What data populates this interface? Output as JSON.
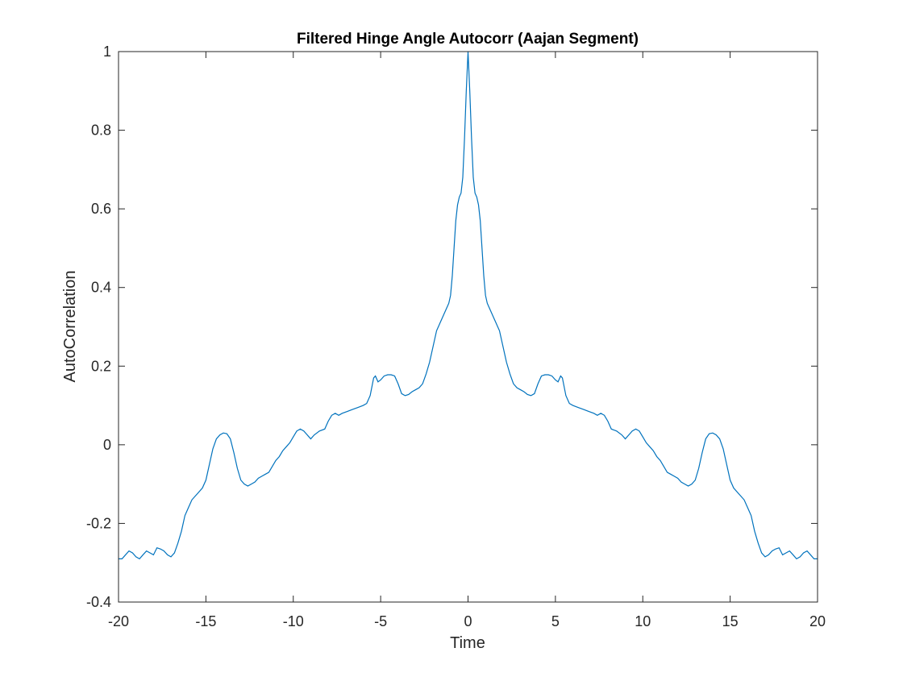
{
  "chart_data": {
    "type": "line",
    "title": "Filtered Hinge Angle Autocorr (Aajan Segment)",
    "xlabel": "Time",
    "ylabel": "AutoCorrelation",
    "xlim": [
      -20,
      20
    ],
    "ylim": [
      -0.4,
      1
    ],
    "xticks": [
      -20,
      -15,
      -10,
      -5,
      0,
      5,
      10,
      15,
      20
    ],
    "yticks": [
      -0.4,
      -0.2,
      0,
      0.2,
      0.4,
      0.6,
      0.8,
      1
    ],
    "xtick_labels": [
      "-20",
      "-15",
      "-10",
      "-5",
      "0",
      "5",
      "10",
      "15",
      "20"
    ],
    "ytick_labels": [
      "-0.4",
      "-0.2",
      "0",
      "0.2",
      "0.4",
      "0.6",
      "0.8",
      "1"
    ],
    "grid": false,
    "box": true,
    "series_color": "#0072BD",
    "series": [
      {
        "symmetric": true,
        "points_right_half": [
          [
            0,
            1.0
          ],
          [
            0.1,
            0.9
          ],
          [
            0.2,
            0.78
          ],
          [
            0.3,
            0.68
          ],
          [
            0.4,
            0.64
          ],
          [
            0.5,
            0.63
          ],
          [
            0.6,
            0.61
          ],
          [
            0.7,
            0.57
          ],
          [
            0.8,
            0.5
          ],
          [
            0.9,
            0.43
          ],
          [
            1.0,
            0.38
          ],
          [
            1.1,
            0.36
          ],
          [
            1.2,
            0.35
          ],
          [
            1.3,
            0.34
          ],
          [
            1.4,
            0.33
          ],
          [
            1.5,
            0.32
          ],
          [
            1.6,
            0.31
          ],
          [
            1.8,
            0.29
          ],
          [
            2.0,
            0.25
          ],
          [
            2.2,
            0.21
          ],
          [
            2.4,
            0.18
          ],
          [
            2.6,
            0.155
          ],
          [
            2.8,
            0.145
          ],
          [
            3.0,
            0.14
          ],
          [
            3.2,
            0.135
          ],
          [
            3.4,
            0.128
          ],
          [
            3.6,
            0.125
          ],
          [
            3.8,
            0.13
          ],
          [
            4.0,
            0.155
          ],
          [
            4.2,
            0.175
          ],
          [
            4.4,
            0.178
          ],
          [
            4.6,
            0.178
          ],
          [
            4.8,
            0.175
          ],
          [
            5.0,
            0.165
          ],
          [
            5.15,
            0.16
          ],
          [
            5.3,
            0.175
          ],
          [
            5.4,
            0.17
          ],
          [
            5.6,
            0.125
          ],
          [
            5.8,
            0.105
          ],
          [
            6.0,
            0.1
          ],
          [
            6.3,
            0.095
          ],
          [
            6.6,
            0.09
          ],
          [
            6.9,
            0.085
          ],
          [
            7.2,
            0.08
          ],
          [
            7.4,
            0.075
          ],
          [
            7.6,
            0.08
          ],
          [
            7.8,
            0.075
          ],
          [
            8.0,
            0.06
          ],
          [
            8.2,
            0.04
          ],
          [
            8.5,
            0.035
          ],
          [
            8.8,
            0.025
          ],
          [
            9.0,
            0.015
          ],
          [
            9.2,
            0.025
          ],
          [
            9.4,
            0.035
          ],
          [
            9.6,
            0.04
          ],
          [
            9.8,
            0.035
          ],
          [
            10.0,
            0.02
          ],
          [
            10.2,
            0.005
          ],
          [
            10.4,
            -0.005
          ],
          [
            10.6,
            -0.015
          ],
          [
            10.8,
            -0.03
          ],
          [
            11.0,
            -0.04
          ],
          [
            11.2,
            -0.055
          ],
          [
            11.4,
            -0.07
          ],
          [
            11.6,
            -0.075
          ],
          [
            11.8,
            -0.08
          ],
          [
            12.0,
            -0.085
          ],
          [
            12.2,
            -0.095
          ],
          [
            12.4,
            -0.1
          ],
          [
            12.6,
            -0.105
          ],
          [
            12.8,
            -0.1
          ],
          [
            13.0,
            -0.09
          ],
          [
            13.2,
            -0.06
          ],
          [
            13.4,
            -0.02
          ],
          [
            13.6,
            0.015
          ],
          [
            13.8,
            0.028
          ],
          [
            14.0,
            0.03
          ],
          [
            14.2,
            0.025
          ],
          [
            14.4,
            0.015
          ],
          [
            14.6,
            -0.01
          ],
          [
            14.8,
            -0.05
          ],
          [
            15.0,
            -0.09
          ],
          [
            15.2,
            -0.11
          ],
          [
            15.5,
            -0.125
          ],
          [
            15.8,
            -0.14
          ],
          [
            16.0,
            -0.16
          ],
          [
            16.2,
            -0.18
          ],
          [
            16.4,
            -0.22
          ],
          [
            16.6,
            -0.25
          ],
          [
            16.8,
            -0.275
          ],
          [
            17.0,
            -0.285
          ],
          [
            17.2,
            -0.28
          ],
          [
            17.4,
            -0.27
          ],
          [
            17.6,
            -0.265
          ],
          [
            17.8,
            -0.262
          ],
          [
            18.0,
            -0.28
          ],
          [
            18.2,
            -0.275
          ],
          [
            18.4,
            -0.27
          ],
          [
            18.6,
            -0.28
          ],
          [
            18.8,
            -0.29
          ],
          [
            19.0,
            -0.285
          ],
          [
            19.2,
            -0.275
          ],
          [
            19.4,
            -0.27
          ],
          [
            19.6,
            -0.28
          ],
          [
            19.8,
            -0.29
          ],
          [
            20.0,
            -0.29
          ]
        ]
      }
    ]
  }
}
